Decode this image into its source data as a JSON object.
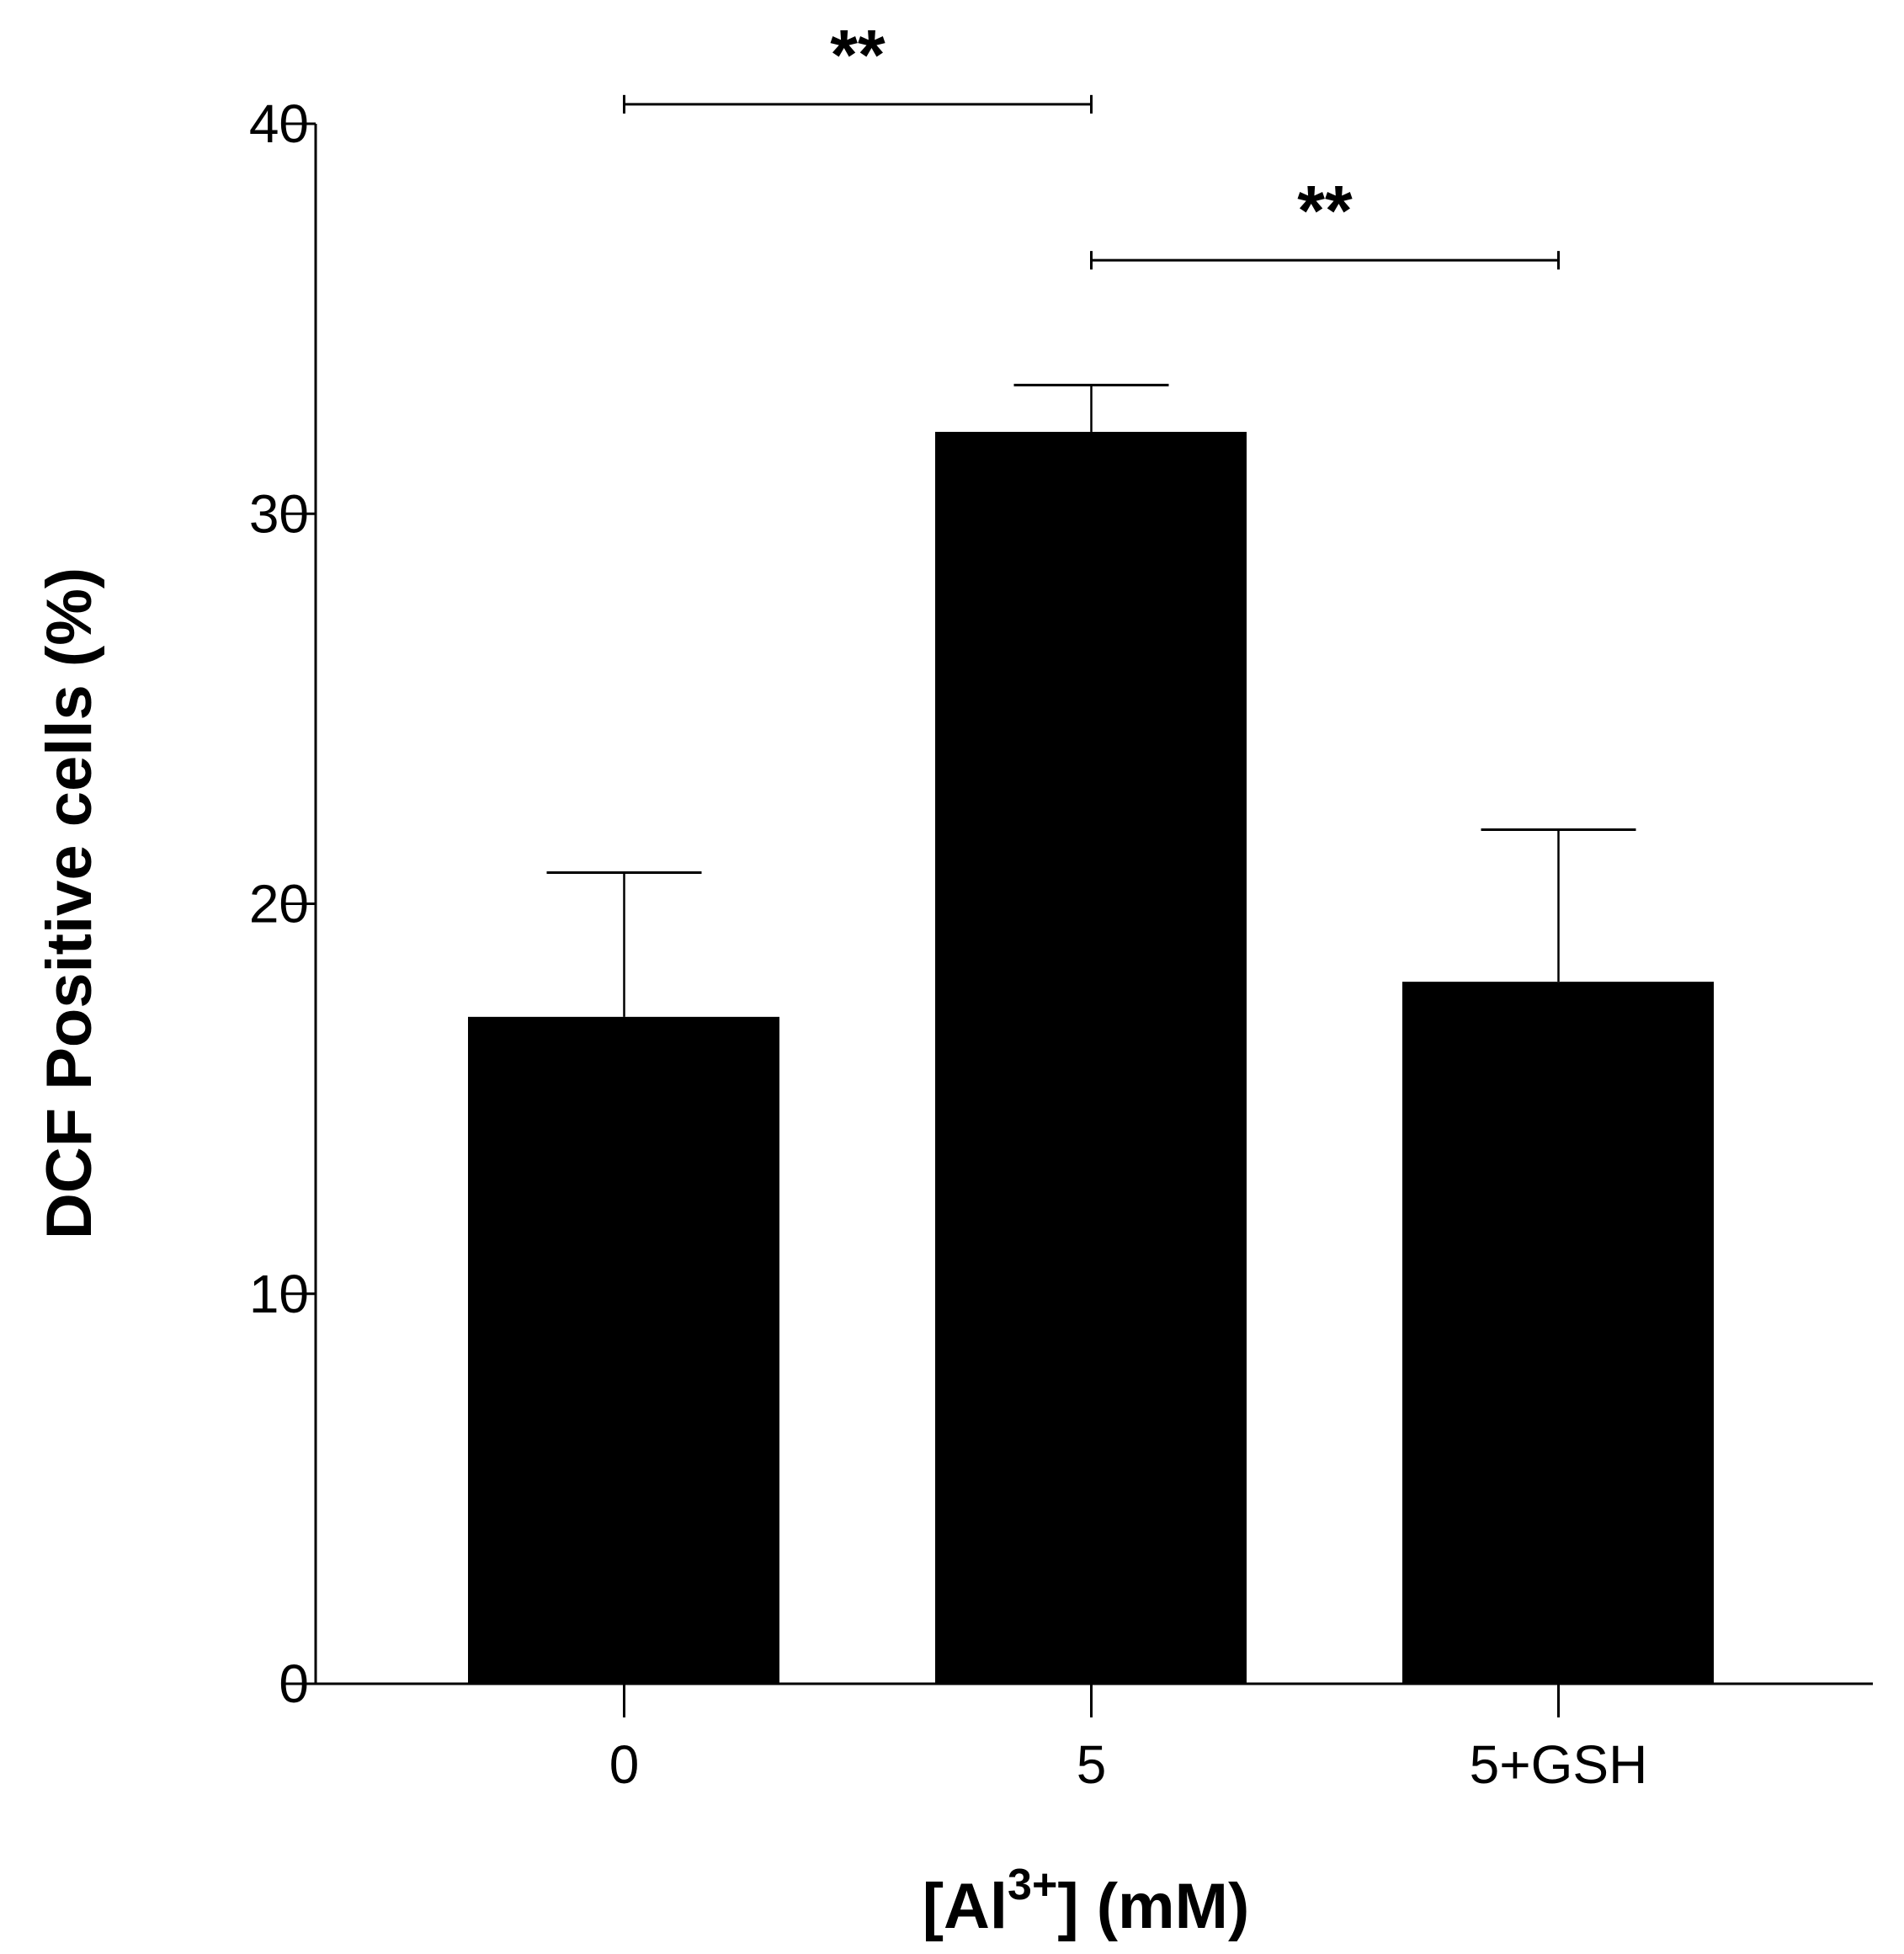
{
  "chart_data": {
    "type": "bar",
    "categories": [
      "0",
      "5",
      "5+GSH"
    ],
    "values": [
      17.1,
      32.1,
      18.0
    ],
    "errors": [
      3.7,
      1.2,
      3.9
    ],
    "title": "",
    "xlabel_prefix": "[Al",
    "xlabel_superscript": "3+",
    "xlabel_suffix": "] (mM)",
    "ylabel": "DCF Positive cells (%)",
    "ylim": [
      0,
      40
    ],
    "yticks": [
      "0",
      "10",
      "20",
      "30",
      "40"
    ],
    "bar_color": "#000000",
    "significance": [
      {
        "from": 0,
        "to": 1,
        "label": "**",
        "level": 40.5
      },
      {
        "from": 1,
        "to": 2,
        "label": "**",
        "level": 36.5
      }
    ]
  }
}
